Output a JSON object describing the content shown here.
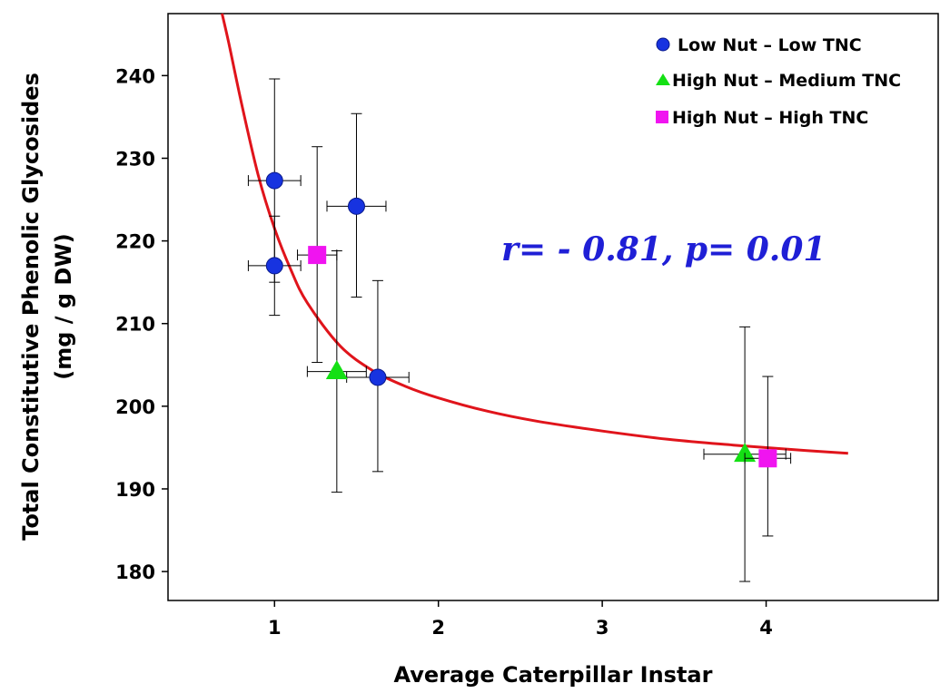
{
  "chart_data": {
    "type": "scatter",
    "xlabel": "Average Caterpillar Instar",
    "ylabel_lines": [
      "Total Constitutive Phenolic Glycosides",
      "(mg / g DW)"
    ],
    "xlim": [
      0.35,
      5.05
    ],
    "ylim": [
      176.5,
      247.5
    ],
    "x_ticks": [
      1,
      2,
      3,
      4
    ],
    "y_ticks": [
      180,
      190,
      200,
      210,
      220,
      230,
      240
    ],
    "grid": false,
    "legend_position": "top-right",
    "annotation": "r= - 0.81, p= 0.01",
    "fit_curve": {
      "color": "#e0141b",
      "points": [
        [
          0.68,
          247.5
        ],
        [
          0.72,
          244
        ],
        [
          0.8,
          236.5
        ],
        [
          0.9,
          228
        ],
        [
          1.0,
          221.5
        ],
        [
          1.1,
          216.5
        ],
        [
          1.2,
          212.5
        ],
        [
          1.4,
          207.3
        ],
        [
          1.6,
          204.3
        ],
        [
          1.8,
          202.4
        ],
        [
          2.0,
          201.0
        ],
        [
          2.3,
          199.4
        ],
        [
          2.6,
          198.2
        ],
        [
          3.0,
          197.0
        ],
        [
          3.4,
          196.0
        ],
        [
          3.8,
          195.3
        ],
        [
          4.2,
          194.7
        ],
        [
          4.5,
          194.3
        ]
      ]
    },
    "series": [
      {
        "name": "Low Nut – Low TNC",
        "color": "#1733e0",
        "marker": "circle",
        "points": [
          {
            "x": 1.0,
            "y": 227.3,
            "xerr": 0.16,
            "yerr_lo": 12.3,
            "yerr_hi": 12.3
          },
          {
            "x": 1.0,
            "y": 217.0,
            "xerr": 0.16,
            "yerr_lo": 6.0,
            "yerr_hi": 6.0
          },
          {
            "x": 1.5,
            "y": 224.2,
            "xerr": 0.18,
            "yerr_lo": 11.0,
            "yerr_hi": 11.2
          },
          {
            "x": 1.63,
            "y": 203.5,
            "xerr": 0.19,
            "yerr_lo": 11.4,
            "yerr_hi": 11.7
          }
        ]
      },
      {
        "name": "High Nut – Medium TNC",
        "color": "#14e014",
        "marker": "triangle",
        "points": [
          {
            "x": 1.38,
            "y": 204.2,
            "xerr": 0.18,
            "yerr_lo": 14.6,
            "yerr_hi": 14.6
          },
          {
            "x": 3.87,
            "y": 194.2,
            "xerr": 0.25,
            "yerr_lo": 15.4,
            "yerr_hi": 15.4
          }
        ]
      },
      {
        "name": "High Nut – High TNC",
        "color": "#f014f0",
        "marker": "square",
        "points": [
          {
            "x": 1.26,
            "y": 218.3,
            "xerr": 0.12,
            "yerr_lo": 13.0,
            "yerr_hi": 13.1
          },
          {
            "x": 4.01,
            "y": 193.7,
            "xerr": 0.14,
            "yerr_lo": 9.4,
            "yerr_hi": 9.9
          }
        ]
      }
    ]
  }
}
